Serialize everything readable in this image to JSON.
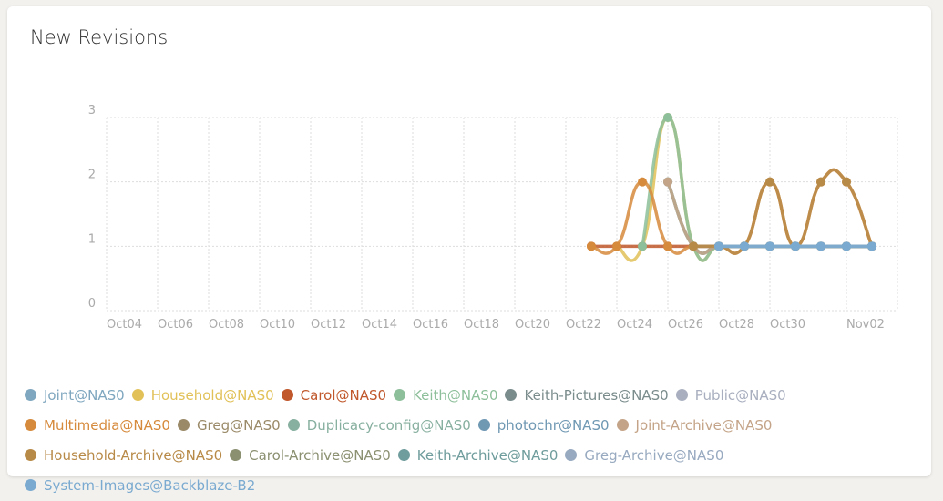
{
  "chart_data": {
    "type": "line",
    "title": "New Revisions",
    "categories": [
      "Oct04",
      null,
      "Oct06",
      null,
      "Oct08",
      null,
      "Oct10",
      null,
      "Oct12",
      null,
      "Oct14",
      null,
      "Oct16",
      null,
      "Oct18",
      null,
      "Oct20",
      null,
      "Oct22",
      null,
      "Oct24",
      null,
      "Oct26",
      null,
      "Oct28",
      null,
      "Oct30",
      null,
      null,
      "Nov02",
      null,
      null
    ],
    "ylim": [
      0,
      3
    ],
    "yticks": [
      0,
      1,
      2,
      3
    ],
    "grid": true,
    "series": [
      {
        "name": "Joint@NAS0",
        "color": "#7fa7bf",
        "values": [
          null,
          null,
          null,
          null,
          null,
          null,
          null,
          null,
          null,
          null,
          null,
          null,
          null,
          null,
          null,
          null,
          null,
          null,
          null,
          null,
          null,
          null,
          null,
          null,
          null,
          1,
          1,
          1,
          1,
          1,
          1,
          null
        ]
      },
      {
        "name": "Household@NAS0",
        "color": "#e1c158",
        "values": [
          null,
          null,
          null,
          null,
          null,
          null,
          null,
          null,
          null,
          null,
          null,
          null,
          null,
          null,
          null,
          null,
          null,
          null,
          null,
          null,
          1,
          1,
          3,
          1,
          1,
          1,
          1,
          1,
          1,
          1,
          1,
          null
        ]
      },
      {
        "name": "Carol@NAS0",
        "color": "#c0582c",
        "values": [
          null,
          null,
          null,
          null,
          null,
          null,
          null,
          null,
          null,
          null,
          null,
          null,
          null,
          null,
          null,
          null,
          null,
          null,
          null,
          1,
          1,
          1,
          1,
          1,
          1,
          1,
          1,
          1,
          1,
          1,
          1,
          null
        ]
      },
      {
        "name": "Keith@NAS0",
        "color": "#8dbf9a",
        "values": [
          null,
          null,
          null,
          null,
          null,
          null,
          null,
          null,
          null,
          null,
          null,
          null,
          null,
          null,
          null,
          null,
          null,
          null,
          null,
          null,
          null,
          1,
          3,
          1,
          1,
          1,
          1,
          1,
          1,
          1,
          1,
          null
        ]
      },
      {
        "name": "Keith-Pictures@NAS0",
        "color": "#7b8c8c",
        "values": [
          null,
          null,
          null,
          null,
          null,
          null,
          null,
          null,
          null,
          null,
          null,
          null,
          null,
          null,
          null,
          null,
          null,
          null,
          null,
          null,
          null,
          null,
          2,
          1,
          1,
          1,
          1,
          1,
          1,
          1,
          1,
          null
        ]
      },
      {
        "name": "Public@NAS0",
        "color": "#a9afbf",
        "values": [
          null,
          null,
          null,
          null,
          null,
          null,
          null,
          null,
          null,
          null,
          null,
          null,
          null,
          null,
          null,
          null,
          null,
          null,
          null,
          null,
          null,
          null,
          null,
          1,
          1,
          1,
          1,
          1,
          1,
          1,
          1,
          null
        ]
      },
      {
        "name": "Multimedia@NAS0",
        "color": "#d68a3c",
        "values": [
          null,
          null,
          null,
          null,
          null,
          null,
          null,
          null,
          null,
          null,
          null,
          null,
          null,
          null,
          null,
          null,
          null,
          null,
          null,
          1,
          1,
          2,
          1,
          1,
          1,
          1,
          2,
          1,
          2,
          2,
          1,
          null
        ]
      },
      {
        "name": "Greg@NAS0",
        "color": "#9a8a68",
        "values": [
          null,
          null,
          null,
          null,
          null,
          null,
          null,
          null,
          null,
          null,
          null,
          null,
          null,
          null,
          null,
          null,
          null,
          null,
          null,
          null,
          null,
          null,
          null,
          1,
          1,
          1,
          1,
          1,
          1,
          1,
          1,
          null
        ]
      },
      {
        "name": "Duplicacy-config@NAS0",
        "color": "#88b0a0",
        "values": [
          null,
          null,
          null,
          null,
          null,
          null,
          null,
          null,
          null,
          null,
          null,
          null,
          null,
          null,
          null,
          null,
          null,
          null,
          null,
          null,
          null,
          null,
          2,
          1,
          1,
          1,
          1,
          1,
          1,
          1,
          1,
          null
        ]
      },
      {
        "name": "photochr@NAS0",
        "color": "#6f98b3",
        "values": [
          null,
          null,
          null,
          null,
          null,
          null,
          null,
          null,
          null,
          null,
          null,
          null,
          null,
          null,
          null,
          null,
          null,
          null,
          null,
          null,
          null,
          null,
          null,
          null,
          1,
          1,
          1,
          1,
          1,
          1,
          1,
          null
        ]
      },
      {
        "name": "Joint-Archive@NAS0",
        "color": "#c4a488",
        "values": [
          null,
          null,
          null,
          null,
          null,
          null,
          null,
          null,
          null,
          null,
          null,
          null,
          null,
          null,
          null,
          null,
          null,
          null,
          null,
          null,
          null,
          null,
          2,
          1,
          1,
          1,
          1,
          1,
          1,
          1,
          1,
          null
        ]
      },
      {
        "name": "Household-Archive@NAS0",
        "color": "#b88a48",
        "values": [
          null,
          null,
          null,
          null,
          null,
          null,
          null,
          null,
          null,
          null,
          null,
          null,
          null,
          null,
          null,
          null,
          null,
          null,
          null,
          null,
          null,
          null,
          null,
          1,
          1,
          1,
          2,
          1,
          2,
          2,
          1,
          null
        ]
      },
      {
        "name": "Carol-Archive@NAS0",
        "color": "#8a9070",
        "values": [
          null,
          null,
          null,
          null,
          null,
          null,
          null,
          null,
          null,
          null,
          null,
          null,
          null,
          null,
          null,
          null,
          null,
          null,
          null,
          null,
          null,
          null,
          null,
          null,
          1,
          1,
          1,
          1,
          1,
          1,
          1,
          null
        ]
      },
      {
        "name": "Keith-Archive@NAS0",
        "color": "#6f9c9c",
        "values": [
          null,
          null,
          null,
          null,
          null,
          null,
          null,
          null,
          null,
          null,
          null,
          null,
          null,
          null,
          null,
          null,
          null,
          null,
          null,
          null,
          null,
          null,
          null,
          null,
          1,
          1,
          1,
          1,
          1,
          1,
          1,
          null
        ]
      },
      {
        "name": "Greg-Archive@NAS0",
        "color": "#98aac0",
        "values": [
          null,
          null,
          null,
          null,
          null,
          null,
          null,
          null,
          null,
          null,
          null,
          null,
          null,
          null,
          null,
          null,
          null,
          null,
          null,
          null,
          null,
          null,
          null,
          null,
          1,
          1,
          1,
          1,
          1,
          1,
          1,
          null
        ]
      },
      {
        "name": "System-Images@Backblaze-B2",
        "color": "#7aaad0",
        "values": [
          null,
          null,
          null,
          null,
          null,
          null,
          null,
          null,
          null,
          null,
          null,
          null,
          null,
          null,
          null,
          null,
          null,
          null,
          null,
          null,
          null,
          null,
          null,
          null,
          1,
          1,
          1,
          1,
          1,
          1,
          1,
          null
        ]
      }
    ]
  }
}
